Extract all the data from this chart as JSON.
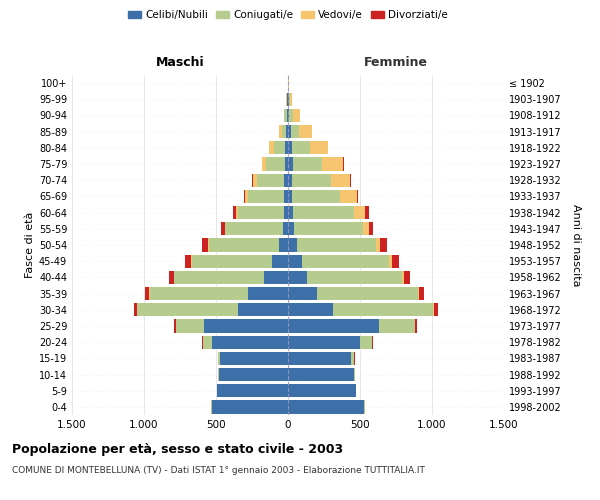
{
  "age_groups": [
    "0-4",
    "5-9",
    "10-14",
    "15-19",
    "20-24",
    "25-29",
    "30-34",
    "35-39",
    "40-44",
    "45-49",
    "50-54",
    "55-59",
    "60-64",
    "65-69",
    "70-74",
    "75-79",
    "80-84",
    "85-89",
    "90-94",
    "95-99",
    "100+"
  ],
  "birth_years": [
    "1998-2002",
    "1993-1997",
    "1988-1992",
    "1983-1987",
    "1978-1982",
    "1973-1977",
    "1968-1972",
    "1963-1967",
    "1958-1962",
    "1953-1957",
    "1948-1952",
    "1943-1947",
    "1938-1942",
    "1933-1937",
    "1928-1932",
    "1923-1927",
    "1918-1922",
    "1913-1917",
    "1908-1912",
    "1903-1907",
    "≤ 1902"
  ],
  "maschi": {
    "celibe": [
      530,
      490,
      480,
      470,
      530,
      580,
      350,
      280,
      170,
      110,
      60,
      35,
      30,
      30,
      25,
      20,
      20,
      15,
      10,
      5,
      2
    ],
    "coniugato": [
      2,
      2,
      5,
      15,
      60,
      200,
      700,
      680,
      620,
      560,
      490,
      400,
      320,
      250,
      190,
      130,
      80,
      30,
      15,
      5,
      0
    ],
    "vedovo": [
      0,
      0,
      0,
      0,
      1,
      1,
      2,
      2,
      3,
      3,
      5,
      5,
      10,
      20,
      30,
      30,
      30,
      15,
      5,
      2,
      0
    ],
    "divorziato": [
      0,
      0,
      0,
      2,
      5,
      10,
      20,
      30,
      35,
      40,
      40,
      25,
      20,
      8,
      5,
      3,
      2,
      0,
      0,
      0,
      0
    ]
  },
  "femmine": {
    "nubile": [
      530,
      470,
      460,
      440,
      500,
      630,
      310,
      200,
      130,
      100,
      60,
      40,
      35,
      30,
      30,
      35,
      25,
      20,
      10,
      5,
      2
    ],
    "coniugata": [
      2,
      2,
      5,
      20,
      80,
      250,
      700,
      700,
      660,
      600,
      550,
      480,
      420,
      330,
      270,
      200,
      130,
      55,
      25,
      10,
      0
    ],
    "vedova": [
      0,
      0,
      0,
      1,
      2,
      3,
      5,
      10,
      15,
      20,
      30,
      40,
      80,
      120,
      130,
      150,
      120,
      90,
      45,
      15,
      2
    ],
    "divorziata": [
      0,
      0,
      0,
      2,
      5,
      12,
      25,
      35,
      45,
      50,
      50,
      30,
      25,
      8,
      5,
      5,
      3,
      2,
      0,
      0,
      0
    ]
  },
  "colors": {
    "celibe": "#3d6fa8",
    "coniugato": "#b5cc8e",
    "vedovo": "#f5c570",
    "divorziato": "#cc2222"
  },
  "xlim": 1500,
  "title": "Popolazione per età, sesso e stato civile - 2003",
  "subtitle": "COMUNE DI MONTEBELLUNA (TV) - Dati ISTAT 1° gennaio 2003 - Elaborazione TUTTITALIA.IT",
  "ylabel_left": "Fasce di età",
  "ylabel_right": "Anni di nascita",
  "maschi_label": "Maschi",
  "femmine_label": "Femmine",
  "legend_labels": [
    "Celibi/Nubili",
    "Coniugati/e",
    "Vedovi/e",
    "Divorziati/e"
  ]
}
